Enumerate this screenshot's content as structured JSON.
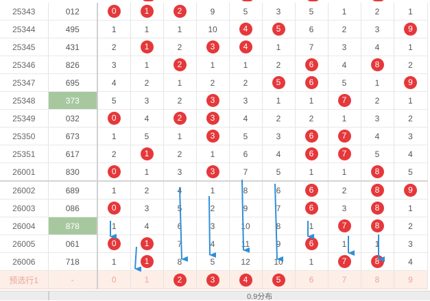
{
  "rows": [
    {
      "issue": "25343",
      "num": "012",
      "cells": [
        [
          "0",
          true
        ],
        [
          "1",
          true
        ],
        [
          "2",
          true
        ],
        [
          "9",
          false
        ],
        [
          "5",
          false
        ],
        [
          "3",
          false
        ],
        [
          "5",
          false
        ],
        [
          "1",
          false
        ],
        [
          "2",
          false
        ],
        [
          "1",
          false
        ]
      ]
    },
    {
      "issue": "25344",
      "num": "495",
      "cells": [
        [
          "1",
          false
        ],
        [
          "1",
          false
        ],
        [
          "1",
          false
        ],
        [
          "10",
          false
        ],
        [
          "4",
          true
        ],
        [
          "5",
          true
        ],
        [
          "6",
          false
        ],
        [
          "2",
          false
        ],
        [
          "3",
          false
        ],
        [
          "9",
          true
        ]
      ]
    },
    {
      "issue": "25345",
      "num": "431",
      "cells": [
        [
          "2",
          false
        ],
        [
          "1",
          true
        ],
        [
          "2",
          false
        ],
        [
          "3",
          true
        ],
        [
          "4",
          true
        ],
        [
          "1",
          false
        ],
        [
          "7",
          false
        ],
        [
          "3",
          false
        ],
        [
          "4",
          false
        ],
        [
          "1",
          false
        ]
      ]
    },
    {
      "issue": "25346",
      "num": "826",
      "cells": [
        [
          "3",
          false
        ],
        [
          "1",
          false
        ],
        [
          "2",
          true
        ],
        [
          "1",
          false
        ],
        [
          "1",
          false
        ],
        [
          "2",
          false
        ],
        [
          "6",
          true
        ],
        [
          "4",
          false
        ],
        [
          "8",
          true
        ],
        [
          "2",
          false
        ]
      ]
    },
    {
      "issue": "25347",
      "num": "695",
      "cells": [
        [
          "4",
          false
        ],
        [
          "2",
          false
        ],
        [
          "1",
          false
        ],
        [
          "2",
          false
        ],
        [
          "2",
          false
        ],
        [
          "5",
          true
        ],
        [
          "6",
          true
        ],
        [
          "5",
          false
        ],
        [
          "1",
          false
        ],
        [
          "9",
          true
        ]
      ]
    },
    {
      "issue": "25348",
      "num": "373",
      "hl": true,
      "cells": [
        [
          "5",
          false
        ],
        [
          "3",
          false
        ],
        [
          "2",
          false
        ],
        [
          "3",
          true
        ],
        [
          "3",
          false
        ],
        [
          "1",
          false
        ],
        [
          "1",
          false
        ],
        [
          "7",
          true
        ],
        [
          "2",
          false
        ],
        [
          "1",
          false
        ]
      ]
    },
    {
      "issue": "25349",
      "num": "032",
      "cells": [
        [
          "0",
          true
        ],
        [
          "4",
          false
        ],
        [
          "2",
          true
        ],
        [
          "3",
          true
        ],
        [
          "4",
          false
        ],
        [
          "2",
          false
        ],
        [
          "2",
          false
        ],
        [
          "1",
          false
        ],
        [
          "3",
          false
        ],
        [
          "2",
          false
        ]
      ]
    },
    {
      "issue": "25350",
      "num": "673",
      "cells": [
        [
          "1",
          false
        ],
        [
          "5",
          false
        ],
        [
          "1",
          false
        ],
        [
          "3",
          true
        ],
        [
          "5",
          false
        ],
        [
          "3",
          false
        ],
        [
          "6",
          true
        ],
        [
          "7",
          true
        ],
        [
          "4",
          false
        ],
        [
          "3",
          false
        ]
      ]
    },
    {
      "issue": "25351",
      "num": "617",
      "cells": [
        [
          "2",
          false
        ],
        [
          "1",
          true
        ],
        [
          "2",
          false
        ],
        [
          "1",
          false
        ],
        [
          "6",
          false
        ],
        [
          "4",
          false
        ],
        [
          "6",
          true
        ],
        [
          "7",
          true
        ],
        [
          "5",
          false
        ],
        [
          "4",
          false
        ]
      ]
    },
    {
      "issue": "26001",
      "num": "830",
      "sep": true,
      "cells": [
        [
          "0",
          true
        ],
        [
          "1",
          false
        ],
        [
          "3",
          false
        ],
        [
          "3",
          true
        ],
        [
          "7",
          false
        ],
        [
          "5",
          false
        ],
        [
          "1",
          false
        ],
        [
          "1",
          false
        ],
        [
          "8",
          true
        ],
        [
          "5",
          false
        ]
      ]
    },
    {
      "issue": "26002",
      "num": "689",
      "cells": [
        [
          "1",
          false
        ],
        [
          "2",
          false
        ],
        [
          "4",
          false
        ],
        [
          "1",
          false
        ],
        [
          "8",
          false
        ],
        [
          "6",
          false
        ],
        [
          "6",
          true
        ],
        [
          "2",
          false
        ],
        [
          "8",
          true
        ],
        [
          "9",
          true
        ]
      ]
    },
    {
      "issue": "26003",
      "num": "086",
      "cells": [
        [
          "0",
          true
        ],
        [
          "3",
          false
        ],
        [
          "5",
          false
        ],
        [
          "2",
          false
        ],
        [
          "9",
          false
        ],
        [
          "7",
          false
        ],
        [
          "6",
          true
        ],
        [
          "3",
          false
        ],
        [
          "8",
          true
        ],
        [
          "1",
          false
        ]
      ]
    },
    {
      "issue": "26004",
      "num": "878",
      "hl": true,
      "cells": [
        [
          "1",
          false
        ],
        [
          "4",
          false
        ],
        [
          "6",
          false
        ],
        [
          "3",
          false
        ],
        [
          "10",
          false
        ],
        [
          "8",
          false
        ],
        [
          "1",
          false
        ],
        [
          "7",
          true
        ],
        [
          "8",
          true
        ],
        [
          "2",
          false
        ]
      ]
    },
    {
      "issue": "26005",
      "num": "061",
      "cells": [
        [
          "0",
          true
        ],
        [
          "1",
          true
        ],
        [
          "7",
          false
        ],
        [
          "4",
          false
        ],
        [
          "11",
          false
        ],
        [
          "9",
          false
        ],
        [
          "6",
          true
        ],
        [
          "1",
          false
        ],
        [
          "1",
          false
        ],
        [
          "3",
          false
        ]
      ]
    },
    {
      "issue": "26006",
      "num": "718",
      "cells": [
        [
          "1",
          false
        ],
        [
          "1",
          true
        ],
        [
          "8",
          false
        ],
        [
          "5",
          false
        ],
        [
          "12",
          false
        ],
        [
          "10",
          false
        ],
        [
          "1",
          false
        ],
        [
          "7",
          true
        ],
        [
          "8",
          true
        ],
        [
          "4",
          false
        ]
      ]
    }
  ],
  "preselect": {
    "label": "预选行1",
    "num": "-",
    "cells": [
      [
        "0",
        false
      ],
      [
        "1",
        false
      ],
      [
        "2",
        true
      ],
      [
        "3",
        true
      ],
      [
        "4",
        true
      ],
      [
        "5",
        true
      ],
      [
        "6",
        false
      ],
      [
        "7",
        false
      ],
      [
        "8",
        false
      ],
      [
        "9",
        false
      ]
    ]
  },
  "footer_text": "0.9分布",
  "colors": {
    "ball": "#e5383b",
    "highlight": "#a7c89f",
    "arrow": "#2f8fd8",
    "preselect_bg": "#fdeee8"
  }
}
